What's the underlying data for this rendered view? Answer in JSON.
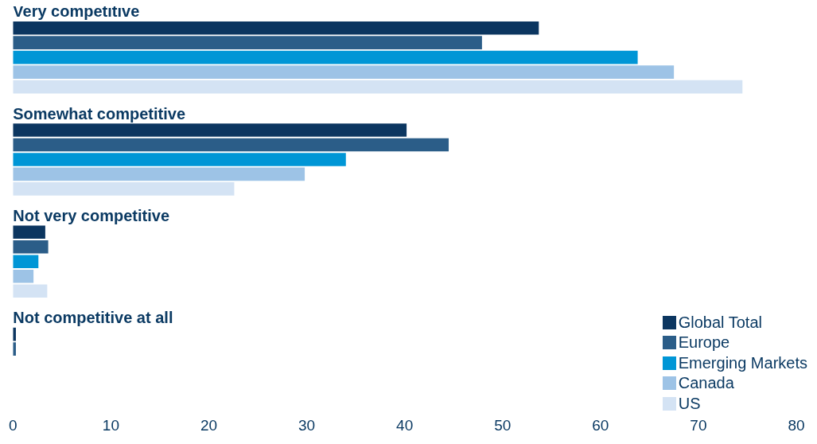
{
  "chart_data": {
    "type": "bar",
    "orientation": "horizontal",
    "categories": [
      "Very competitive",
      "Somewhat competitive",
      "Not very competitive",
      "Not competitive at all"
    ],
    "series": [
      {
        "name": "Global Total",
        "color": "#0c3660",
        "values": [
          53.7,
          40.2,
          3.3,
          0.3
        ]
      },
      {
        "name": "Europe",
        "color": "#2b5d88",
        "values": [
          47.9,
          44.5,
          3.6,
          0.3
        ]
      },
      {
        "name": "Emerging Markets",
        "color": "#0096d6",
        "values": [
          63.8,
          34,
          2.6,
          0
        ]
      },
      {
        "name": "Canada",
        "color": "#9dc3e6",
        "values": [
          67.5,
          29.8,
          2.1,
          0
        ]
      },
      {
        "name": "US",
        "color": "#d4e3f4",
        "values": [
          74.5,
          22.6,
          3.5,
          0
        ]
      }
    ],
    "xlim": [
      0,
      80
    ],
    "xticks": [
      0,
      10,
      20,
      30,
      40,
      50,
      60,
      70,
      80
    ],
    "grid": false,
    "legend": "bottom right"
  }
}
